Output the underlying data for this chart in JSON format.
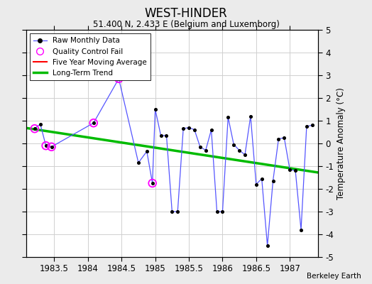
{
  "title": "WEST-HINDER",
  "subtitle": "51.400 N, 2.433 E (Belgium and Luxemborg)",
  "ylabel": "Temperature Anomaly (°C)",
  "credit": "Berkeley Earth",
  "xlim": [
    1983.08,
    1987.42
  ],
  "ylim": [
    -5,
    5
  ],
  "yticks": [
    -5,
    -4,
    -3,
    -2,
    -1,
    0,
    1,
    2,
    3,
    4,
    5
  ],
  "xticks": [
    1983.5,
    1984.0,
    1984.5,
    1985.0,
    1985.5,
    1986.0,
    1986.5,
    1987.0
  ],
  "xtick_labels": [
    "1983.5",
    "1984",
    "1984.5",
    "1985",
    "1985.5",
    "1986",
    "1986.5",
    "1987"
  ],
  "background_color": "#ebebeb",
  "plot_bg_color": "#ffffff",
  "line_color": "#5555ff",
  "marker_color": "black",
  "qc_color": "magenta",
  "trend_color": "#00bb00",
  "ma_color": "red",
  "series": [
    [
      1983.208,
      0.65
    ],
    [
      1983.292,
      0.85
    ],
    [
      1983.375,
      -0.1
    ],
    [
      1983.458,
      -0.15
    ],
    [
      1984.083,
      0.9
    ],
    [
      1984.458,
      2.85
    ],
    [
      1984.75,
      -0.85
    ],
    [
      1984.875,
      -0.35
    ],
    [
      1984.958,
      -1.75
    ],
    [
      1985.0,
      1.5
    ],
    [
      1985.083,
      0.35
    ],
    [
      1985.167,
      0.35
    ],
    [
      1985.25,
      -3.0
    ],
    [
      1985.333,
      -3.0
    ],
    [
      1985.417,
      0.65
    ],
    [
      1985.5,
      0.7
    ],
    [
      1985.583,
      0.6
    ],
    [
      1985.667,
      -0.15
    ],
    [
      1985.75,
      -0.3
    ],
    [
      1985.833,
      0.6
    ],
    [
      1985.917,
      -3.0
    ],
    [
      1986.0,
      -3.0
    ],
    [
      1986.083,
      1.15
    ],
    [
      1986.167,
      -0.05
    ],
    [
      1986.25,
      -0.3
    ],
    [
      1986.333,
      -0.5
    ],
    [
      1986.417,
      1.2
    ],
    [
      1986.5,
      -1.8
    ],
    [
      1986.583,
      -1.55
    ],
    [
      1986.667,
      -4.5
    ],
    [
      1986.75,
      -1.65
    ],
    [
      1986.833,
      0.2
    ],
    [
      1986.917,
      0.25
    ],
    [
      1987.0,
      -1.15
    ],
    [
      1987.083,
      -1.2
    ],
    [
      1987.167,
      -3.8
    ],
    [
      1987.25,
      0.75
    ],
    [
      1987.333,
      0.8
    ]
  ],
  "qc_points": [
    [
      1983.208,
      0.65
    ],
    [
      1983.375,
      -0.1
    ],
    [
      1983.458,
      -0.15
    ],
    [
      1984.083,
      0.9
    ],
    [
      1984.458,
      2.85
    ],
    [
      1984.958,
      -1.75
    ]
  ],
  "trend_x": [
    1983.08,
    1987.42
  ],
  "trend_y": [
    0.68,
    -1.28
  ]
}
